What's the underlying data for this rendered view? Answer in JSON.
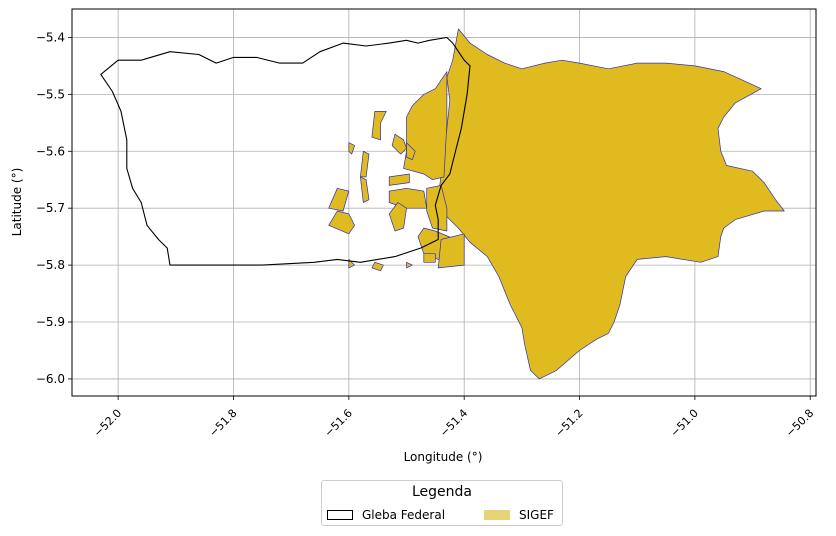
{
  "chart_data": {
    "type": "map",
    "xlabel": "Longitude (°)",
    "ylabel": "Latitude (°)",
    "xlim": [
      -52.08,
      -50.79
    ],
    "ylim": [
      -6.03,
      -5.35
    ],
    "xticks": [
      -52.0,
      -51.8,
      -51.6,
      -51.4,
      -51.2,
      -51.0,
      -50.8
    ],
    "xtick_labels": [
      "−52.0",
      "−51.8",
      "−51.6",
      "−51.4",
      "−51.2",
      "−51.0",
      "−50.8"
    ],
    "yticks": [
      -5.4,
      -5.5,
      -5.6,
      -5.7,
      -5.8,
      -5.9,
      -6.0
    ],
    "ytick_labels": [
      "−5.4",
      "−5.5",
      "−5.6",
      "−5.7",
      "−5.8",
      "−5.9",
      "−6.0"
    ],
    "grid": true,
    "legend": {
      "title": "Legenda",
      "placement": "bottom-center-outside",
      "entries": [
        {
          "label": "Gleba Federal",
          "style": "outline",
          "color": "#000000"
        },
        {
          "label": "SIGEF",
          "style": "fill",
          "color": "#e8d37a"
        }
      ]
    },
    "layers": [
      {
        "name": "Gleba Federal",
        "stroke": "#000000",
        "fill": "none",
        "polygons": [
          [
            [
              -52.03,
              -5.465
            ],
            [
              -52.0,
              -5.44
            ],
            [
              -51.96,
              -5.44
            ],
            [
              -51.91,
              -5.425
            ],
            [
              -51.86,
              -5.43
            ],
            [
              -51.83,
              -5.445
            ],
            [
              -51.8,
              -5.435
            ],
            [
              -51.76,
              -5.435
            ],
            [
              -51.72,
              -5.445
            ],
            [
              -51.68,
              -5.445
            ],
            [
              -51.65,
              -5.425
            ],
            [
              -51.61,
              -5.41
            ],
            [
              -51.57,
              -5.415
            ],
            [
              -51.53,
              -5.41
            ],
            [
              -51.5,
              -5.405
            ],
            [
              -51.48,
              -5.41
            ],
            [
              -51.46,
              -5.405
            ],
            [
              -51.43,
              -5.4
            ],
            [
              -51.42,
              -5.41
            ],
            [
              -51.4,
              -5.44
            ],
            [
              -51.39,
              -5.45
            ],
            [
              -51.395,
              -5.5
            ],
            [
              -51.405,
              -5.56
            ],
            [
              -51.415,
              -5.6
            ],
            [
              -51.425,
              -5.64
            ],
            [
              -51.44,
              -5.66
            ],
            [
              -51.45,
              -5.695
            ],
            [
              -51.445,
              -5.72
            ],
            [
              -51.445,
              -5.755
            ],
            [
              -51.475,
              -5.77
            ],
            [
              -51.52,
              -5.785
            ],
            [
              -51.58,
              -5.795
            ],
            [
              -51.62,
              -5.79
            ],
            [
              -51.66,
              -5.795
            ],
            [
              -51.75,
              -5.8
            ],
            [
              -51.91,
              -5.8
            ],
            [
              -51.915,
              -5.77
            ],
            [
              -51.93,
              -5.755
            ],
            [
              -51.95,
              -5.73
            ],
            [
              -51.96,
              -5.69
            ],
            [
              -51.975,
              -5.665
            ],
            [
              -51.985,
              -5.63
            ],
            [
              -51.985,
              -5.58
            ],
            [
              -51.995,
              -5.53
            ],
            [
              -52.01,
              -5.495
            ],
            [
              -52.03,
              -5.465
            ]
          ]
        ]
      },
      {
        "name": "SIGEF",
        "stroke": "#3030b0",
        "fill": "#dfbb20",
        "polygons": [
          [
            [
              -51.41,
              -5.385
            ],
            [
              -51.39,
              -5.41
            ],
            [
              -51.36,
              -5.43
            ],
            [
              -51.33,
              -5.445
            ],
            [
              -51.3,
              -5.455
            ],
            [
              -51.26,
              -5.445
            ],
            [
              -51.23,
              -5.44
            ],
            [
              -51.2,
              -5.445
            ],
            [
              -51.15,
              -5.455
            ],
            [
              -51.1,
              -5.445
            ],
            [
              -51.05,
              -5.445
            ],
            [
              -51.0,
              -5.45
            ],
            [
              -50.95,
              -5.46
            ],
            [
              -50.885,
              -5.49
            ],
            [
              -50.93,
              -5.515
            ],
            [
              -50.95,
              -5.54
            ],
            [
              -50.96,
              -5.56
            ],
            [
              -50.955,
              -5.6
            ],
            [
              -50.945,
              -5.625
            ],
            [
              -50.9,
              -5.635
            ],
            [
              -50.88,
              -5.655
            ],
            [
              -50.86,
              -5.685
            ],
            [
              -50.845,
              -5.705
            ],
            [
              -50.88,
              -5.705
            ],
            [
              -50.93,
              -5.72
            ],
            [
              -50.95,
              -5.735
            ],
            [
              -50.955,
              -5.75
            ],
            [
              -50.96,
              -5.785
            ],
            [
              -50.99,
              -5.795
            ],
            [
              -51.05,
              -5.785
            ],
            [
              -51.1,
              -5.79
            ],
            [
              -51.12,
              -5.82
            ],
            [
              -51.13,
              -5.87
            ],
            [
              -51.14,
              -5.9
            ],
            [
              -51.15,
              -5.92
            ],
            [
              -51.17,
              -5.93
            ],
            [
              -51.2,
              -5.95
            ],
            [
              -51.24,
              -5.985
            ],
            [
              -51.27,
              -6.0
            ],
            [
              -51.285,
              -5.985
            ],
            [
              -51.295,
              -5.94
            ],
            [
              -51.3,
              -5.91
            ],
            [
              -51.32,
              -5.87
            ],
            [
              -51.34,
              -5.82
            ],
            [
              -51.36,
              -5.785
            ],
            [
              -51.39,
              -5.76
            ],
            [
              -51.41,
              -5.735
            ],
            [
              -51.43,
              -5.715
            ],
            [
              -51.445,
              -5.685
            ],
            [
              -51.44,
              -5.64
            ],
            [
              -51.435,
              -5.6
            ],
            [
              -51.43,
              -5.56
            ],
            [
              -51.425,
              -5.51
            ],
            [
              -51.43,
              -5.47
            ],
            [
              -51.42,
              -5.44
            ],
            [
              -51.41,
              -5.385
            ]
          ],
          [
            [
              -51.43,
              -5.46
            ],
            [
              -51.45,
              -5.49
            ],
            [
              -51.47,
              -5.5
            ],
            [
              -51.49,
              -5.52
            ],
            [
              -51.5,
              -5.54
            ],
            [
              -51.5,
              -5.6
            ],
            [
              -51.505,
              -5.63
            ],
            [
              -51.47,
              -5.64
            ],
            [
              -51.455,
              -5.65
            ],
            [
              -51.435,
              -5.645
            ],
            [
              -51.43,
              -5.55
            ],
            [
              -51.43,
              -5.46
            ]
          ],
          [
            [
              -51.45,
              -5.74
            ],
            [
              -51.47,
              -5.735
            ],
            [
              -51.48,
              -5.75
            ],
            [
              -51.47,
              -5.78
            ],
            [
              -51.445,
              -5.79
            ],
            [
              -51.42,
              -5.79
            ],
            [
              -51.415,
              -5.755
            ],
            [
              -51.45,
              -5.74
            ]
          ],
          [
            [
              -51.44,
              -5.755
            ],
            [
              -51.4,
              -5.745
            ],
            [
              -51.4,
              -5.8
            ],
            [
              -51.445,
              -5.805
            ],
            [
              -51.44,
              -5.755
            ]
          ],
          [
            [
              -51.53,
              -5.67
            ],
            [
              -51.5,
              -5.665
            ],
            [
              -51.47,
              -5.67
            ],
            [
              -51.465,
              -5.7
            ],
            [
              -51.5,
              -5.7
            ],
            [
              -51.53,
              -5.69
            ],
            [
              -51.53,
              -5.67
            ]
          ],
          [
            [
              -51.465,
              -5.665
            ],
            [
              -51.44,
              -5.66
            ],
            [
              -51.43,
              -5.7
            ],
            [
              -51.43,
              -5.74
            ],
            [
              -51.455,
              -5.735
            ],
            [
              -51.465,
              -5.705
            ],
            [
              -51.465,
              -5.665
            ]
          ],
          [
            [
              -51.53,
              -5.645
            ],
            [
              -51.495,
              -5.64
            ],
            [
              -51.495,
              -5.655
            ],
            [
              -51.53,
              -5.66
            ],
            [
              -51.53,
              -5.645
            ]
          ],
          [
            [
              -51.515,
              -5.69
            ],
            [
              -51.5,
              -5.7
            ],
            [
              -51.505,
              -5.735
            ],
            [
              -51.52,
              -5.74
            ],
            [
              -51.53,
              -5.71
            ],
            [
              -51.515,
              -5.69
            ]
          ],
          [
            [
              -51.6,
              -5.71
            ],
            [
              -51.62,
              -5.705
            ],
            [
              -51.635,
              -5.73
            ],
            [
              -51.6,
              -5.745
            ],
            [
              -51.59,
              -5.73
            ],
            [
              -51.6,
              -5.71
            ]
          ],
          [
            [
              -51.62,
              -5.665
            ],
            [
              -51.6,
              -5.67
            ],
            [
              -51.61,
              -5.705
            ],
            [
              -51.635,
              -5.7
            ],
            [
              -51.62,
              -5.665
            ]
          ],
          [
            [
              -51.58,
              -5.645
            ],
            [
              -51.57,
              -5.65
            ],
            [
              -51.565,
              -5.685
            ],
            [
              -51.575,
              -5.69
            ],
            [
              -51.58,
              -5.645
            ]
          ],
          [
            [
              -51.575,
              -5.6
            ],
            [
              -51.565,
              -5.605
            ],
            [
              -51.57,
              -5.645
            ],
            [
              -51.58,
              -5.645
            ],
            [
              -51.575,
              -5.6
            ]
          ],
          [
            [
              -51.545,
              -5.55
            ],
            [
              -51.535,
              -5.53
            ],
            [
              -51.555,
              -5.53
            ],
            [
              -51.56,
              -5.575
            ],
            [
              -51.545,
              -5.58
            ],
            [
              -51.545,
              -5.55
            ]
          ],
          [
            [
              -51.52,
              -5.57
            ],
            [
              -51.505,
              -5.58
            ],
            [
              -51.5,
              -5.595
            ],
            [
              -51.51,
              -5.605
            ],
            [
              -51.525,
              -5.59
            ],
            [
              -51.52,
              -5.57
            ]
          ],
          [
            [
              -51.5,
              -5.585
            ],
            [
              -51.485,
              -5.6
            ],
            [
              -51.49,
              -5.615
            ],
            [
              -51.5,
              -5.61
            ],
            [
              -51.5,
              -5.585
            ]
          ],
          [
            [
              -51.6,
              -5.585
            ],
            [
              -51.59,
              -5.59
            ],
            [
              -51.595,
              -5.605
            ],
            [
              -51.6,
              -5.6
            ],
            [
              -51.6,
              -5.585
            ]
          ],
          [
            [
              -51.47,
              -5.78
            ],
            [
              -51.45,
              -5.78
            ],
            [
              -51.45,
              -5.795
            ],
            [
              -51.47,
              -5.795
            ],
            [
              -51.47,
              -5.78
            ]
          ],
          [
            [
              -51.555,
              -5.795
            ],
            [
              -51.54,
              -5.8
            ],
            [
              -51.545,
              -5.81
            ],
            [
              -51.56,
              -5.805
            ],
            [
              -51.555,
              -5.795
            ]
          ],
          [
            [
              -51.6,
              -5.79
            ],
            [
              -51.59,
              -5.8
            ],
            [
              -51.6,
              -5.805
            ],
            [
              -51.6,
              -5.79
            ]
          ],
          [
            [
              -51.5,
              -5.795
            ],
            [
              -51.49,
              -5.8
            ],
            [
              -51.5,
              -5.805
            ],
            [
              -51.5,
              -5.795
            ]
          ]
        ]
      }
    ]
  }
}
